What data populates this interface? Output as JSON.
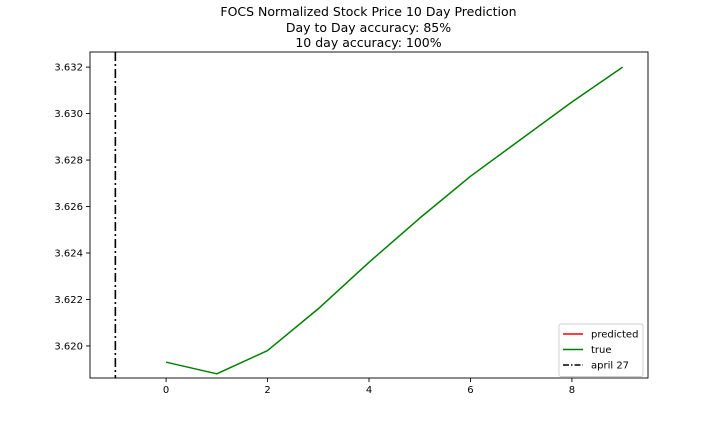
{
  "chart_data": {
    "type": "line",
    "title": "FOCS Normalized Stock Price 10 Day Prediction",
    "subtitle_lines": [
      "Day to Day accuracy: 85%",
      "10 day accuracy: 100%"
    ],
    "xlabel": "",
    "ylabel": "",
    "xlim": [
      -1.5,
      9.5
    ],
    "ylim": [
      3.61862,
      3.63265
    ],
    "x_ticks": [
      0,
      2,
      4,
      6,
      8
    ],
    "y_ticks": [
      3.62,
      3.622,
      3.624,
      3.626,
      3.628,
      3.63,
      3.632
    ],
    "y_tick_labels": [
      "3.620",
      "3.622",
      "3.624",
      "3.626",
      "3.628",
      "3.630",
      "3.632"
    ],
    "grid": false,
    "legend_position": "lower-right",
    "series": [
      {
        "name": "predicted",
        "color": "#ff0000",
        "style": "solid",
        "x": [],
        "values": []
      },
      {
        "name": "true",
        "color": "#008000",
        "style": "solid",
        "x": [
          0,
          1,
          2,
          3,
          4,
          5,
          6,
          7,
          8,
          9
        ],
        "values": [
          3.6193,
          3.6188,
          3.6198,
          3.6216,
          3.6236,
          3.6255,
          3.6273,
          3.6289,
          3.6305,
          3.632
        ]
      }
    ],
    "vlines": [
      {
        "name": "april 27",
        "x": -1,
        "color": "#000000",
        "style": "dashdot"
      }
    ]
  }
}
